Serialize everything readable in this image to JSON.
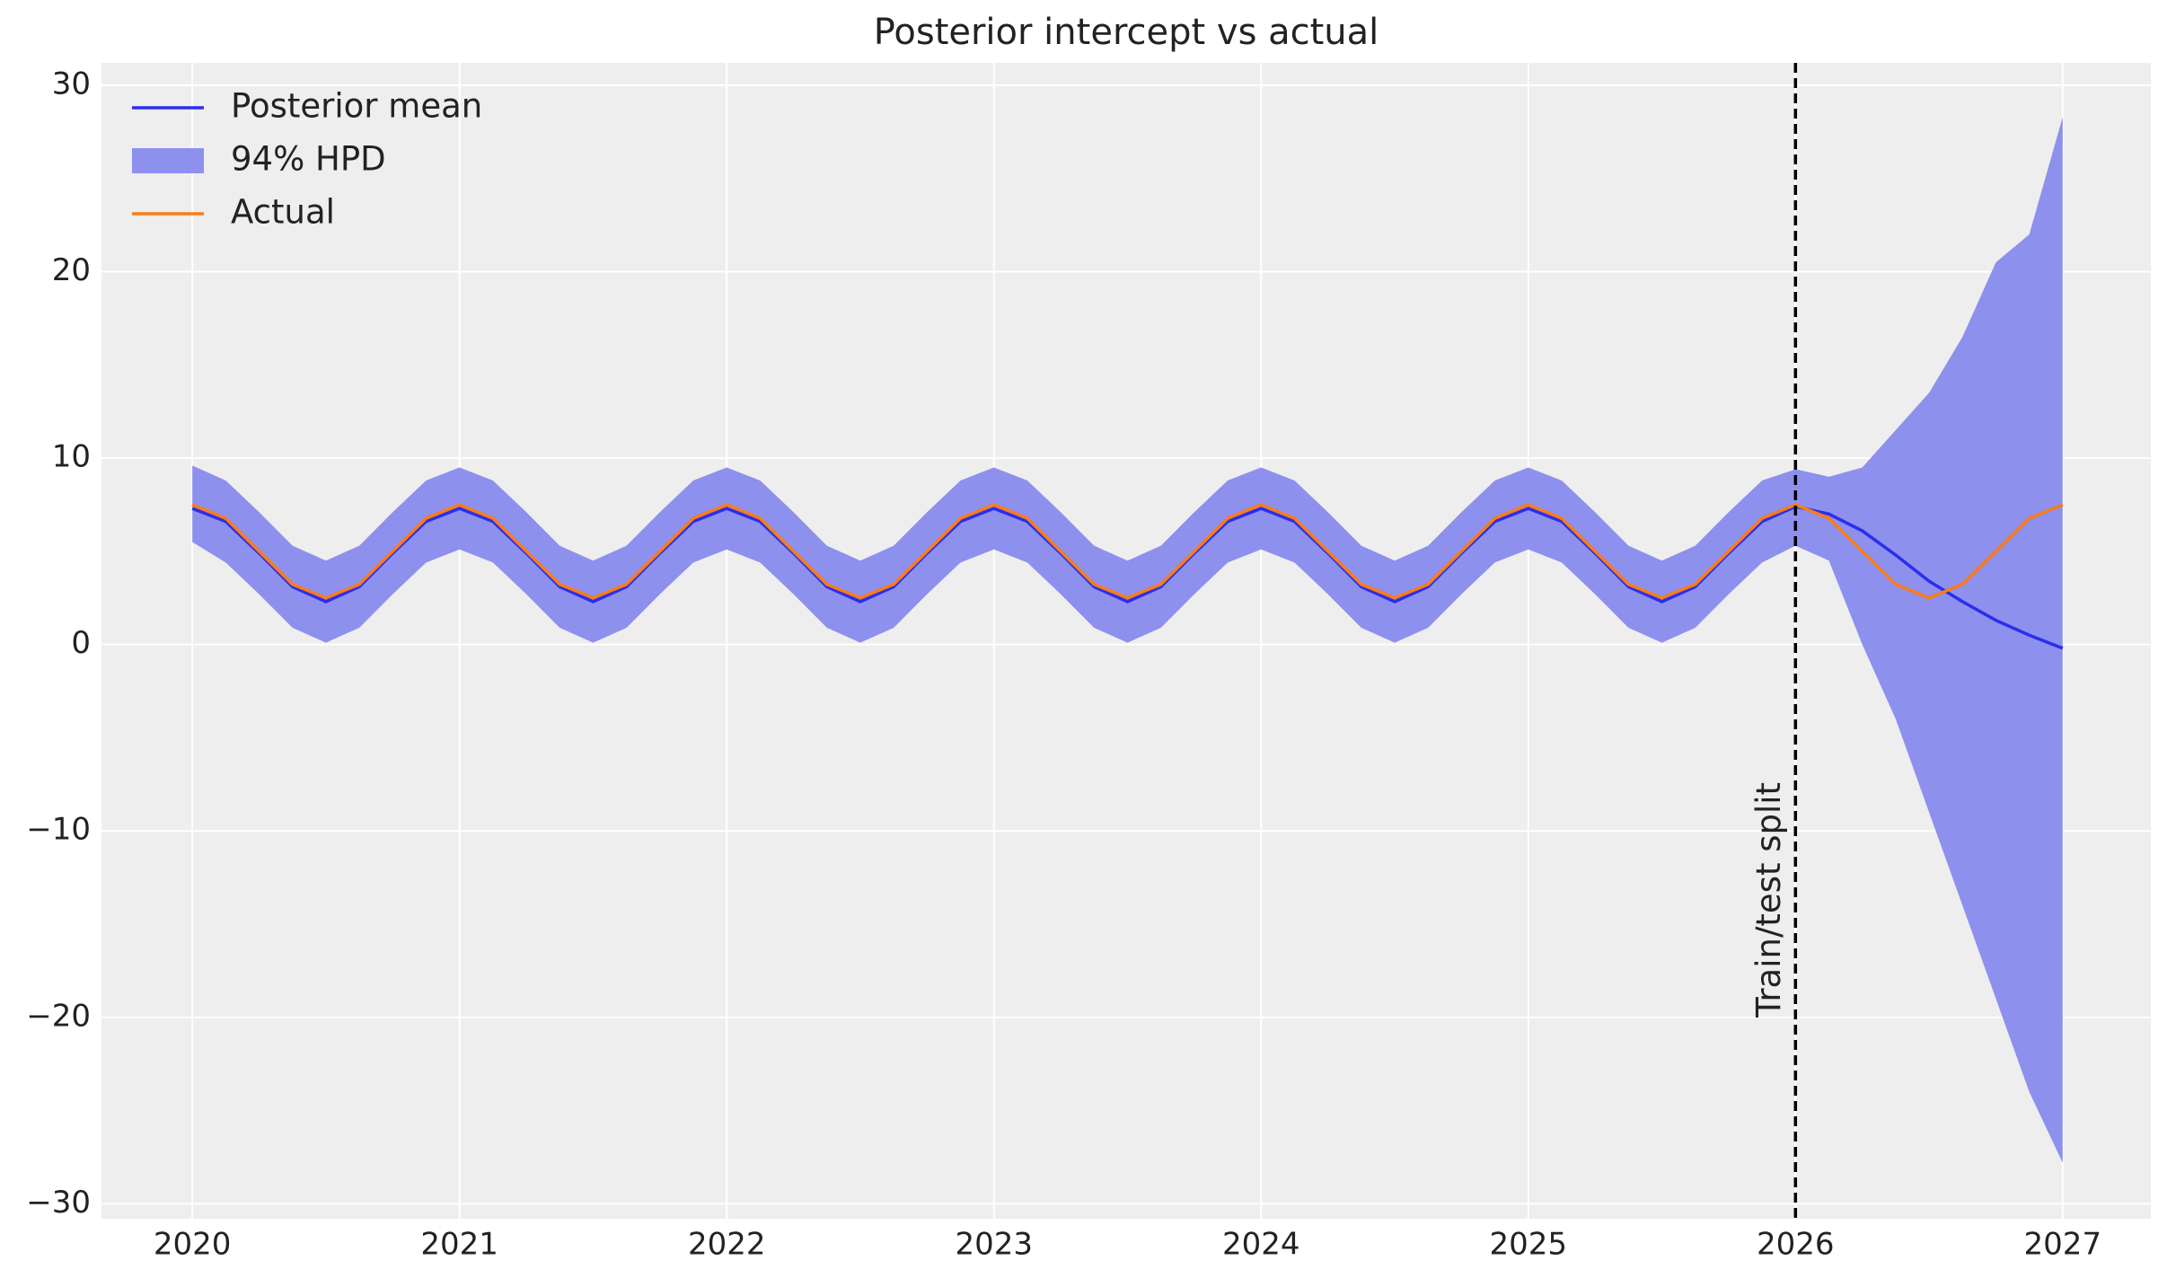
{
  "chart_data": {
    "type": "line",
    "title": "Posterior intercept vs actual",
    "x": [
      2020,
      2020.125,
      2020.25,
      2020.375,
      2020.5,
      2020.625,
      2020.75,
      2020.875,
      2021,
      2021.125,
      2021.25,
      2021.375,
      2021.5,
      2021.625,
      2021.75,
      2021.875,
      2022,
      2022.125,
      2022.25,
      2022.375,
      2022.5,
      2022.625,
      2022.75,
      2022.875,
      2023,
      2023.125,
      2023.25,
      2023.375,
      2023.5,
      2023.625,
      2023.75,
      2023.875,
      2024,
      2024.125,
      2024.25,
      2024.375,
      2024.5,
      2024.625,
      2024.75,
      2024.875,
      2025,
      2025.125,
      2025.25,
      2025.375,
      2025.5,
      2025.625,
      2025.75,
      2025.875,
      2026,
      2026.125,
      2026.25,
      2026.375,
      2026.5,
      2026.625,
      2026.75,
      2026.875,
      2027
    ],
    "series": [
      {
        "name": "Posterior mean",
        "color": "#2a2eec",
        "values": [
          7.3,
          6.6,
          4.9,
          3.1,
          2.3,
          3.1,
          4.9,
          6.6,
          7.3,
          6.6,
          4.9,
          3.1,
          2.3,
          3.1,
          4.9,
          6.6,
          7.3,
          6.6,
          4.9,
          3.1,
          2.3,
          3.1,
          4.9,
          6.6,
          7.3,
          6.6,
          4.9,
          3.1,
          2.3,
          3.1,
          4.9,
          6.6,
          7.3,
          6.6,
          4.9,
          3.1,
          2.3,
          3.1,
          4.9,
          6.6,
          7.3,
          6.6,
          4.9,
          3.1,
          2.3,
          3.1,
          4.9,
          6.6,
          7.4,
          7.0,
          6.1,
          4.8,
          3.4,
          2.3,
          1.3,
          0.5,
          -0.2
        ]
      },
      {
        "name": "94% HPD",
        "color": "#8e90ee",
        "upper": [
          9.6,
          8.8,
          7.1,
          5.3,
          4.5,
          5.3,
          7.1,
          8.8,
          9.5,
          8.8,
          7.1,
          5.3,
          4.5,
          5.3,
          7.1,
          8.8,
          9.5,
          8.8,
          7.1,
          5.3,
          4.5,
          5.3,
          7.1,
          8.8,
          9.5,
          8.8,
          7.1,
          5.3,
          4.5,
          5.3,
          7.1,
          8.8,
          9.5,
          8.8,
          7.1,
          5.3,
          4.5,
          5.3,
          7.1,
          8.8,
          9.5,
          8.8,
          7.1,
          5.3,
          4.5,
          5.3,
          7.1,
          8.8,
          9.4,
          9.0,
          9.5,
          11.5,
          13.5,
          16.5,
          20.5,
          22,
          28.3
        ],
        "lower": [
          5.5,
          4.4,
          2.7,
          0.9,
          0.1,
          0.9,
          2.7,
          4.4,
          5.1,
          4.4,
          2.7,
          0.9,
          0.1,
          0.9,
          2.7,
          4.4,
          5.1,
          4.4,
          2.7,
          0.9,
          0.1,
          0.9,
          2.7,
          4.4,
          5.1,
          4.4,
          2.7,
          0.9,
          0.1,
          0.9,
          2.7,
          4.4,
          5.1,
          4.4,
          2.7,
          0.9,
          0.1,
          0.9,
          2.7,
          4.4,
          5.1,
          4.4,
          2.7,
          0.9,
          0.1,
          0.9,
          2.7,
          4.4,
          5.3,
          4.5,
          0,
          -4,
          -9,
          -14,
          -19,
          -24,
          -27.8
        ]
      },
      {
        "name": "Actual",
        "color": "#fa7c17",
        "values": [
          7.5,
          6.77,
          5,
          3.23,
          2.5,
          3.23,
          5,
          6.77,
          7.5,
          6.77,
          5,
          3.23,
          2.5,
          3.23,
          5,
          6.77,
          7.5,
          6.77,
          5,
          3.23,
          2.5,
          3.23,
          5,
          6.77,
          7.5,
          6.77,
          5,
          3.23,
          2.5,
          3.23,
          5,
          6.77,
          7.5,
          6.77,
          5,
          3.23,
          2.5,
          3.23,
          5,
          6.77,
          7.5,
          6.77,
          5,
          3.23,
          2.5,
          3.23,
          5,
          6.77,
          7.5,
          6.77,
          5,
          3.23,
          2.5,
          3.23,
          5,
          6.77,
          7.5
        ]
      }
    ],
    "xlim": [
      2019.66,
      2027.33
    ],
    "xticks": [
      2020,
      2021,
      2022,
      2023,
      2024,
      2025,
      2026,
      2027
    ],
    "ylim": [
      -30.8,
      31.2
    ],
    "yticks": [
      {
        "value": -30,
        "label": "−30"
      },
      {
        "value": -20,
        "label": "−20"
      },
      {
        "value": -10,
        "label": "−10"
      },
      0,
      10,
      20,
      30
    ],
    "grid": true,
    "legend": "upper left",
    "vline": 2026,
    "annotation": "Train/test split"
  }
}
